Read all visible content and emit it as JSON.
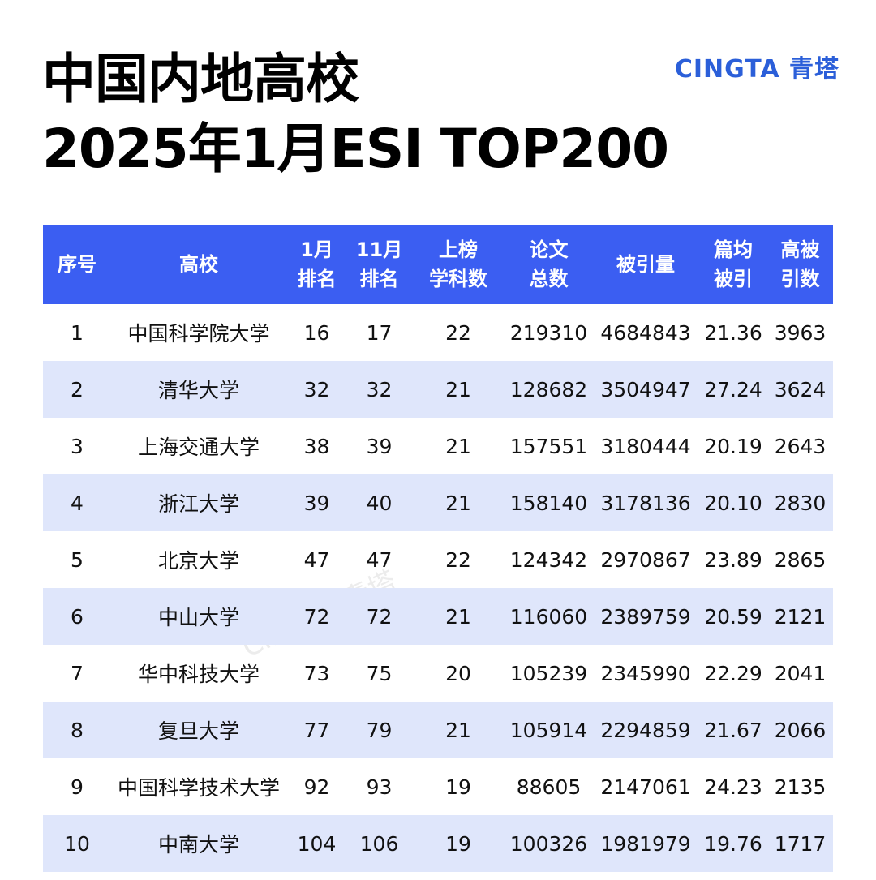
{
  "header": {
    "title_lines": [
      "中国内地高校",
      "2025年1月ESI TOP200"
    ],
    "logo": "CINGTA 青塔"
  },
  "watermark": "CINGTA 青塔",
  "table": {
    "columns": [
      [
        "序号"
      ],
      [
        "高校"
      ],
      [
        "1月",
        "排名"
      ],
      [
        "11月",
        "排名"
      ],
      [
        "上榜",
        "学科数"
      ],
      [
        "论文",
        "总数"
      ],
      [
        "被引量"
      ],
      [
        "篇均",
        "被引"
      ],
      [
        "高被",
        "引数"
      ]
    ],
    "rows": [
      [
        "1",
        "中国科学院大学",
        "16",
        "17",
        "22",
        "219310",
        "4684843",
        "21.36",
        "3963"
      ],
      [
        "2",
        "清华大学",
        "32",
        "32",
        "21",
        "128682",
        "3504947",
        "27.24",
        "3624"
      ],
      [
        "3",
        "上海交通大学",
        "38",
        "39",
        "21",
        "157551",
        "3180444",
        "20.19",
        "2643"
      ],
      [
        "4",
        "浙江大学",
        "39",
        "40",
        "21",
        "158140",
        "3178136",
        "20.10",
        "2830"
      ],
      [
        "5",
        "北京大学",
        "47",
        "47",
        "22",
        "124342",
        "2970867",
        "23.89",
        "2865"
      ],
      [
        "6",
        "中山大学",
        "72",
        "72",
        "21",
        "116060",
        "2389759",
        "20.59",
        "2121"
      ],
      [
        "7",
        "华中科技大学",
        "73",
        "75",
        "20",
        "105239",
        "2345990",
        "22.29",
        "2041"
      ],
      [
        "8",
        "复旦大学",
        "77",
        "79",
        "21",
        "105914",
        "2294859",
        "21.67",
        "2066"
      ],
      [
        "9",
        "中国科学技术大学",
        "92",
        "93",
        "19",
        "88605",
        "2147061",
        "24.23",
        "2135"
      ],
      [
        "10",
        "中南大学",
        "104",
        "106",
        "19",
        "100326",
        "1981979",
        "19.76",
        "1717"
      ]
    ]
  }
}
